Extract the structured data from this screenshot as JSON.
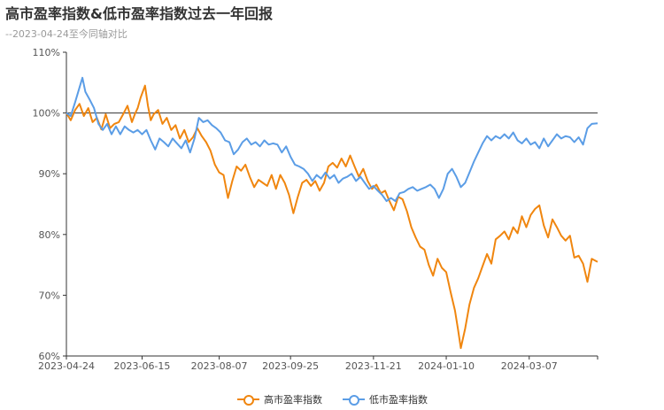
{
  "title": "高市盈率指数&低市盈率指数过去一年回报",
  "subtitle": "--2023-04-24至今同轴对比",
  "colors": {
    "high": "#f0860f",
    "low": "#5b9de6",
    "axis": "#333333",
    "grid": "#e6e6e6",
    "baseline": "#333333"
  },
  "chart_data": {
    "type": "line",
    "y_unit": "%",
    "ylim": [
      60,
      110
    ],
    "y_ticks": [
      60,
      70,
      80,
      90,
      100,
      110
    ],
    "y_tick_labels": [
      "60%",
      "70%",
      "80%",
      "90%",
      "100%",
      "110%"
    ],
    "x_tick_labels": [
      "2023-04-24",
      "2023-06-15",
      "2023-08-07",
      "2023-09-25",
      "2023-11-21",
      "2024-01-10",
      "2024-03-07"
    ],
    "x_start": "2023-04-24",
    "x_end": "2024-04-23",
    "legend_position": "bottom-center",
    "grid": false,
    "series": [
      {
        "name": "高市盈率指数",
        "color_key": "high",
        "points": [
          [
            "2023-04-24",
            100
          ],
          [
            "2023-04-27",
            98.8
          ],
          [
            "2023-04-30",
            100.5
          ],
          [
            "2023-05-03",
            101.5
          ],
          [
            "2023-05-06",
            99.5
          ],
          [
            "2023-05-09",
            100.8
          ],
          [
            "2023-05-12",
            98.5
          ],
          [
            "2023-05-15",
            99.2
          ],
          [
            "2023-05-18",
            97.3
          ],
          [
            "2023-05-21",
            99.8
          ],
          [
            "2023-05-24",
            97.5
          ],
          [
            "2023-05-27",
            98.2
          ],
          [
            "2023-05-30",
            98.5
          ],
          [
            "2023-06-02",
            99.8
          ],
          [
            "2023-06-05",
            101.2
          ],
          [
            "2023-06-08",
            98.5
          ],
          [
            "2023-06-10",
            99.8
          ],
          [
            "2023-06-12",
            100.8
          ],
          [
            "2023-06-14",
            102.5
          ],
          [
            "2023-06-17",
            104.5
          ],
          [
            "2023-06-19",
            101.2
          ],
          [
            "2023-06-21",
            98.8
          ],
          [
            "2023-06-23",
            99.8
          ],
          [
            "2023-06-26",
            100.5
          ],
          [
            "2023-06-29",
            98.2
          ],
          [
            "2023-07-02",
            99.2
          ],
          [
            "2023-07-05",
            97.2
          ],
          [
            "2023-07-08",
            98.0
          ],
          [
            "2023-07-11",
            95.8
          ],
          [
            "2023-07-14",
            97.2
          ],
          [
            "2023-07-17",
            95.2
          ],
          [
            "2023-07-20",
            96.0
          ],
          [
            "2023-07-23",
            97.5
          ],
          [
            "2023-07-26",
            96.2
          ],
          [
            "2023-07-29",
            95.2
          ],
          [
            "2023-08-01",
            93.8
          ],
          [
            "2023-08-04",
            91.5
          ],
          [
            "2023-08-07",
            90.2
          ],
          [
            "2023-08-10",
            89.8
          ],
          [
            "2023-08-13",
            86.0
          ],
          [
            "2023-08-16",
            88.8
          ],
          [
            "2023-08-19",
            91.2
          ],
          [
            "2023-08-22",
            90.5
          ],
          [
            "2023-08-25",
            91.5
          ],
          [
            "2023-08-28",
            89.5
          ],
          [
            "2023-08-31",
            87.8
          ],
          [
            "2023-09-03",
            89.0
          ],
          [
            "2023-09-06",
            88.5
          ],
          [
            "2023-09-09",
            88.0
          ],
          [
            "2023-09-12",
            89.8
          ],
          [
            "2023-09-15",
            87.5
          ],
          [
            "2023-09-18",
            89.8
          ],
          [
            "2023-09-21",
            88.5
          ],
          [
            "2023-09-24",
            86.5
          ],
          [
            "2023-09-27",
            83.5
          ],
          [
            "2023-09-30",
            86.2
          ],
          [
            "2023-10-03",
            88.5
          ],
          [
            "2023-10-06",
            89.0
          ],
          [
            "2023-10-09",
            88.0
          ],
          [
            "2023-10-12",
            88.8
          ],
          [
            "2023-10-15",
            87.2
          ],
          [
            "2023-10-18",
            88.5
          ],
          [
            "2023-10-21",
            91.2
          ],
          [
            "2023-10-24",
            91.8
          ],
          [
            "2023-10-27",
            91.0
          ],
          [
            "2023-10-30",
            92.5
          ],
          [
            "2023-11-02",
            91.2
          ],
          [
            "2023-11-05",
            93.0
          ],
          [
            "2023-11-08",
            91.2
          ],
          [
            "2023-11-11",
            89.5
          ],
          [
            "2023-11-14",
            90.8
          ],
          [
            "2023-11-17",
            88.8
          ],
          [
            "2023-11-20",
            87.5
          ],
          [
            "2023-11-23",
            88.2
          ],
          [
            "2023-11-26",
            86.8
          ],
          [
            "2023-11-29",
            87.2
          ],
          [
            "2023-12-02",
            85.5
          ],
          [
            "2023-12-05",
            84.0
          ],
          [
            "2023-12-08",
            86.2
          ],
          [
            "2023-12-11",
            85.8
          ],
          [
            "2023-12-14",
            83.8
          ],
          [
            "2023-12-17",
            81.2
          ],
          [
            "2023-12-20",
            79.5
          ],
          [
            "2023-12-23",
            78.0
          ],
          [
            "2023-12-26",
            77.5
          ],
          [
            "2023-12-29",
            75.0
          ],
          [
            "2024-01-01",
            73.2
          ],
          [
            "2024-01-04",
            76.0
          ],
          [
            "2024-01-07",
            74.5
          ],
          [
            "2024-01-10",
            73.8
          ],
          [
            "2024-01-13",
            70.5
          ],
          [
            "2024-01-16",
            67.5
          ],
          [
            "2024-01-18",
            64.5
          ],
          [
            "2024-01-20",
            61.3
          ],
          [
            "2024-01-23",
            64.5
          ],
          [
            "2024-01-26",
            68.5
          ],
          [
            "2024-01-29",
            71.2
          ],
          [
            "2024-02-01",
            72.8
          ],
          [
            "2024-02-04",
            74.8
          ],
          [
            "2024-02-07",
            76.8
          ],
          [
            "2024-02-10",
            75.2
          ],
          [
            "2024-02-13",
            79.2
          ],
          [
            "2024-02-16",
            79.8
          ],
          [
            "2024-02-19",
            80.5
          ],
          [
            "2024-02-22",
            79.2
          ],
          [
            "2024-02-25",
            81.2
          ],
          [
            "2024-02-28",
            80.2
          ],
          [
            "2024-03-02",
            83.0
          ],
          [
            "2024-03-05",
            81.2
          ],
          [
            "2024-03-08",
            83.2
          ],
          [
            "2024-03-11",
            84.2
          ],
          [
            "2024-03-14",
            84.8
          ],
          [
            "2024-03-17",
            81.5
          ],
          [
            "2024-03-20",
            79.5
          ],
          [
            "2024-03-23",
            82.5
          ],
          [
            "2024-03-26",
            81.2
          ],
          [
            "2024-03-29",
            79.8
          ],
          [
            "2024-04-01",
            79.0
          ],
          [
            "2024-04-04",
            79.8
          ],
          [
            "2024-04-07",
            76.2
          ],
          [
            "2024-04-10",
            76.5
          ],
          [
            "2024-04-13",
            75.2
          ],
          [
            "2024-04-16",
            72.2
          ],
          [
            "2024-04-19",
            76.0
          ],
          [
            "2024-04-23",
            75.5
          ]
        ]
      },
      {
        "name": "低市盈率指数",
        "color_key": "low",
        "points": [
          [
            "2023-04-24",
            100
          ],
          [
            "2023-04-27",
            99.5
          ],
          [
            "2023-04-30",
            101.8
          ],
          [
            "2023-05-03",
            104.2
          ],
          [
            "2023-05-05",
            105.8
          ],
          [
            "2023-05-07",
            103.5
          ],
          [
            "2023-05-10",
            102.2
          ],
          [
            "2023-05-13",
            100.8
          ],
          [
            "2023-05-16",
            98.2
          ],
          [
            "2023-05-19",
            97.2
          ],
          [
            "2023-05-22",
            98.2
          ],
          [
            "2023-05-25",
            96.5
          ],
          [
            "2023-05-28",
            97.8
          ],
          [
            "2023-05-31",
            96.5
          ],
          [
            "2023-06-03",
            97.8
          ],
          [
            "2023-06-06",
            97.2
          ],
          [
            "2023-06-09",
            96.8
          ],
          [
            "2023-06-12",
            97.2
          ],
          [
            "2023-06-15",
            96.5
          ],
          [
            "2023-06-18",
            97.2
          ],
          [
            "2023-06-21",
            95.5
          ],
          [
            "2023-06-24",
            94.0
          ],
          [
            "2023-06-27",
            95.8
          ],
          [
            "2023-06-30",
            95.2
          ],
          [
            "2023-07-03",
            94.5
          ],
          [
            "2023-07-06",
            95.8
          ],
          [
            "2023-07-09",
            95.0
          ],
          [
            "2023-07-12",
            94.2
          ],
          [
            "2023-07-15",
            95.5
          ],
          [
            "2023-07-18",
            93.5
          ],
          [
            "2023-07-21",
            95.8
          ],
          [
            "2023-07-24",
            99.2
          ],
          [
            "2023-07-27",
            98.5
          ],
          [
            "2023-07-30",
            98.8
          ],
          [
            "2023-08-02",
            98.0
          ],
          [
            "2023-08-05",
            97.5
          ],
          [
            "2023-08-08",
            96.8
          ],
          [
            "2023-08-11",
            95.5
          ],
          [
            "2023-08-14",
            95.2
          ],
          [
            "2023-08-17",
            93.2
          ],
          [
            "2023-08-20",
            94.0
          ],
          [
            "2023-08-23",
            95.2
          ],
          [
            "2023-08-26",
            95.8
          ],
          [
            "2023-08-29",
            94.8
          ],
          [
            "2023-09-01",
            95.2
          ],
          [
            "2023-09-04",
            94.5
          ],
          [
            "2023-09-07",
            95.5
          ],
          [
            "2023-09-10",
            94.8
          ],
          [
            "2023-09-13",
            95.0
          ],
          [
            "2023-09-16",
            94.8
          ],
          [
            "2023-09-19",
            93.5
          ],
          [
            "2023-09-22",
            94.5
          ],
          [
            "2023-09-25",
            92.8
          ],
          [
            "2023-09-28",
            91.5
          ],
          [
            "2023-10-01",
            91.2
          ],
          [
            "2023-10-04",
            90.8
          ],
          [
            "2023-10-07",
            90.0
          ],
          [
            "2023-10-10",
            88.8
          ],
          [
            "2023-10-13",
            89.8
          ],
          [
            "2023-10-16",
            89.2
          ],
          [
            "2023-10-19",
            90.2
          ],
          [
            "2023-10-22",
            89.2
          ],
          [
            "2023-10-25",
            89.8
          ],
          [
            "2023-10-28",
            88.5
          ],
          [
            "2023-10-31",
            89.2
          ],
          [
            "2023-11-03",
            89.5
          ],
          [
            "2023-11-06",
            90.0
          ],
          [
            "2023-11-09",
            88.8
          ],
          [
            "2023-11-12",
            89.5
          ],
          [
            "2023-11-15",
            88.5
          ],
          [
            "2023-11-18",
            87.5
          ],
          [
            "2023-11-21",
            88.0
          ],
          [
            "2023-11-24",
            87.2
          ],
          [
            "2023-11-27",
            86.5
          ],
          [
            "2023-11-30",
            85.5
          ],
          [
            "2023-12-03",
            86.0
          ],
          [
            "2023-12-06",
            85.5
          ],
          [
            "2023-12-09",
            86.8
          ],
          [
            "2023-12-12",
            87.0
          ],
          [
            "2023-12-15",
            87.5
          ],
          [
            "2023-12-18",
            87.8
          ],
          [
            "2023-12-21",
            87.2
          ],
          [
            "2023-12-24",
            87.5
          ],
          [
            "2023-12-27",
            87.8
          ],
          [
            "2023-12-30",
            88.2
          ],
          [
            "2024-01-02",
            87.5
          ],
          [
            "2024-01-05",
            86.0
          ],
          [
            "2024-01-08",
            87.5
          ],
          [
            "2024-01-11",
            90.0
          ],
          [
            "2024-01-14",
            90.8
          ],
          [
            "2024-01-17",
            89.5
          ],
          [
            "2024-01-20",
            87.8
          ],
          [
            "2024-01-23",
            88.5
          ],
          [
            "2024-01-26",
            90.2
          ],
          [
            "2024-01-29",
            92.0
          ],
          [
            "2024-02-01",
            93.5
          ],
          [
            "2024-02-04",
            95.0
          ],
          [
            "2024-02-07",
            96.2
          ],
          [
            "2024-02-10",
            95.5
          ],
          [
            "2024-02-13",
            96.2
          ],
          [
            "2024-02-16",
            95.8
          ],
          [
            "2024-02-19",
            96.5
          ],
          [
            "2024-02-22",
            95.8
          ],
          [
            "2024-02-25",
            96.8
          ],
          [
            "2024-02-28",
            95.5
          ],
          [
            "2024-03-02",
            95.0
          ],
          [
            "2024-03-05",
            95.8
          ],
          [
            "2024-03-08",
            94.8
          ],
          [
            "2024-03-11",
            95.2
          ],
          [
            "2024-03-14",
            94.2
          ],
          [
            "2024-03-17",
            95.8
          ],
          [
            "2024-03-20",
            94.5
          ],
          [
            "2024-03-23",
            95.5
          ],
          [
            "2024-03-26",
            96.5
          ],
          [
            "2024-03-29",
            95.8
          ],
          [
            "2024-04-01",
            96.2
          ],
          [
            "2024-04-04",
            96.0
          ],
          [
            "2024-04-07",
            95.2
          ],
          [
            "2024-04-10",
            96.0
          ],
          [
            "2024-04-13",
            94.8
          ],
          [
            "2024-04-16",
            97.5
          ],
          [
            "2024-04-19",
            98.2
          ],
          [
            "2024-04-23",
            98.3
          ]
        ]
      }
    ]
  }
}
